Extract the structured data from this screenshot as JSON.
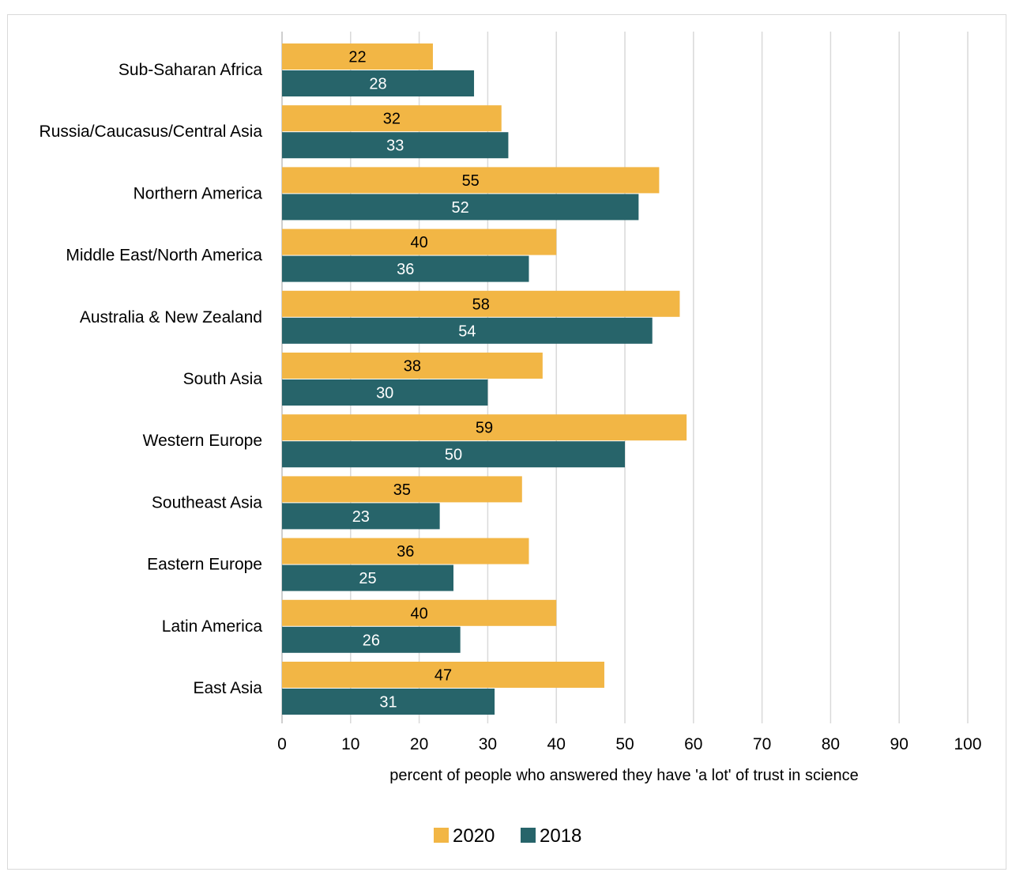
{
  "chart_data": {
    "type": "bar",
    "orientation": "horizontal",
    "categories": [
      "Sub-Saharan Africa",
      "Russia/Caucasus/Central Asia",
      "Northern America",
      "Middle East/North America",
      "Australia & New Zealand",
      "South Asia",
      "Western Europe",
      "Southeast Asia",
      "Eastern Europe",
      "Latin America",
      "East Asia"
    ],
    "series": [
      {
        "name": "2020",
        "color": "#F2B645",
        "label_color": "#000000",
        "values": [
          22,
          32,
          55,
          40,
          58,
          38,
          59,
          35,
          36,
          40,
          47
        ]
      },
      {
        "name": "2018",
        "color": "#27646A",
        "label_color": "#ffffff",
        "values": [
          28,
          33,
          52,
          36,
          54,
          30,
          50,
          23,
          25,
          26,
          31
        ]
      }
    ],
    "xlabel": "percent of people who answered they have 'a lot' of trust in science",
    "xlim": [
      0,
      100
    ],
    "xticks": [
      "0",
      "10",
      "20",
      "30",
      "40",
      "50",
      "60",
      "70",
      "80",
      "90",
      "100"
    ],
    "grid": "vertical",
    "legend": "bottom"
  }
}
